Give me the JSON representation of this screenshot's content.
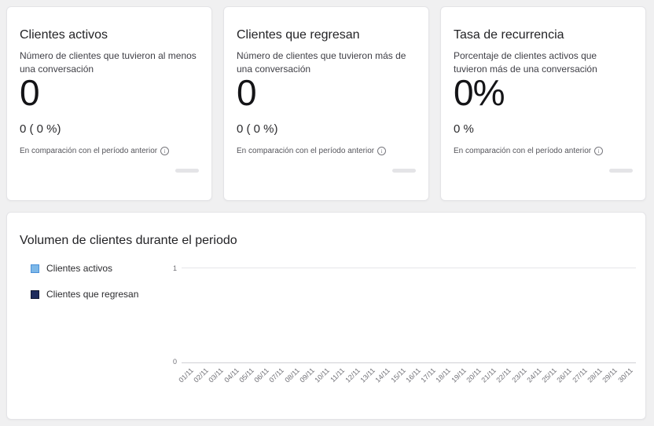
{
  "cards": [
    {
      "title": "Clientes activos",
      "description": "Número de clientes que tuvieron al menos una conversación",
      "value": "0",
      "comparison": "0 ( 0 %)",
      "footnote": "En comparación con el período anterior"
    },
    {
      "title": "Clientes que regresan",
      "description": "Número de clientes que tuvieron más de una conversación",
      "value": "0",
      "comparison": "0 ( 0 %)",
      "footnote": "En comparación con el período anterior"
    },
    {
      "title": "Tasa de recurrencia",
      "description": "Porcentaje de clientes activos que tuvieron más de una conversación",
      "value": "0%",
      "comparison": "0 %",
      "footnote": "En comparación con el período anterior"
    }
  ],
  "chart_card": {
    "title": "Volumen de clientes durante el periodo",
    "legend": [
      {
        "label": "Clientes activos",
        "color": "#7db8e8",
        "border": "#4a90d9"
      },
      {
        "label": "Clientes que regresan",
        "color": "#1f2c5c",
        "border": "#10172e"
      }
    ]
  },
  "chart_data": {
    "type": "bar",
    "title": "Volumen de clientes durante el periodo",
    "x": [
      "01/11",
      "02/11",
      "03/11",
      "04/11",
      "05/11",
      "06/11",
      "07/11",
      "08/11",
      "09/11",
      "10/11",
      "11/11",
      "12/11",
      "13/11",
      "14/11",
      "15/11",
      "16/11",
      "17/11",
      "18/11",
      "19/11",
      "20/11",
      "21/11",
      "22/11",
      "23/11",
      "24/11",
      "25/11",
      "26/11",
      "27/11",
      "28/11",
      "29/11",
      "30/11"
    ],
    "series": [
      {
        "name": "Clientes activos",
        "values": [
          0,
          0,
          0,
          0,
          0,
          0,
          0,
          0,
          0,
          0,
          0,
          0,
          0,
          0,
          0,
          0,
          0,
          0,
          0,
          0,
          0,
          0,
          0,
          0,
          0,
          0,
          0,
          0,
          0,
          0
        ]
      },
      {
        "name": "Clientes que regresan",
        "values": [
          0,
          0,
          0,
          0,
          0,
          0,
          0,
          0,
          0,
          0,
          0,
          0,
          0,
          0,
          0,
          0,
          0,
          0,
          0,
          0,
          0,
          0,
          0,
          0,
          0,
          0,
          0,
          0,
          0,
          0
        ]
      }
    ],
    "ylim": [
      0,
      1
    ],
    "y_ticks": [
      0,
      1
    ],
    "legend_position": "left",
    "grid": false
  }
}
